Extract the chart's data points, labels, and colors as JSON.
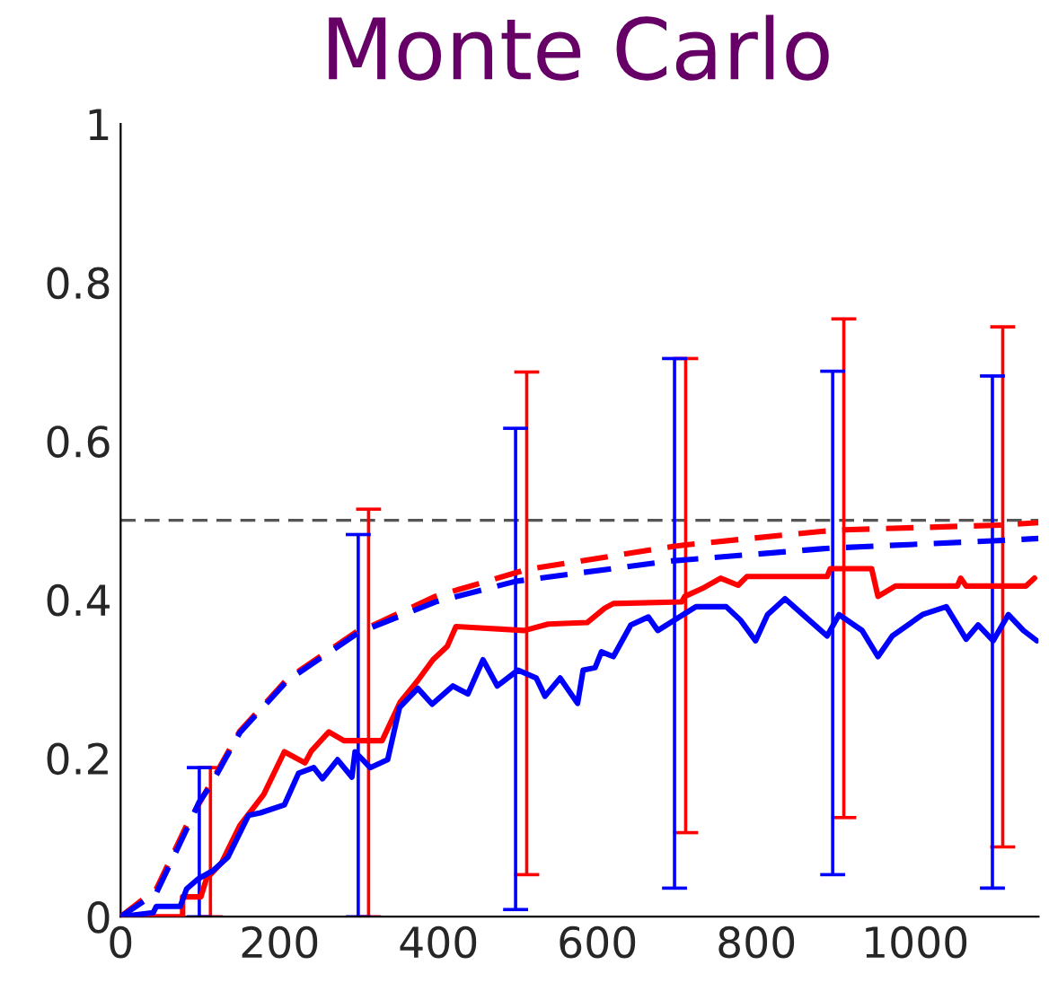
{
  "chart_data": {
    "type": "line",
    "title": "Monte Carlo",
    "xlim": [
      0,
      1155
    ],
    "ylim": [
      0,
      1
    ],
    "xticks": [
      0,
      200,
      400,
      600,
      800,
      1000
    ],
    "yticks": [
      0,
      0.2,
      0.4,
      0.6,
      0.8,
      1
    ],
    "grid": false,
    "legend": false,
    "marker": "none",
    "series": [
      {
        "color": "#ff0000",
        "line_style": "dashed",
        "x": [
          0,
          45,
          83,
          113,
          150,
          210,
          299,
          312,
          396,
          508,
          511,
          695,
          711,
          882,
          910,
          1110,
          1155
        ],
        "values": [
          0,
          0.035,
          0.115,
          0.168,
          0.234,
          0.3,
          0.361,
          0.365,
          0.404,
          0.437,
          0.438,
          0.467,
          0.469,
          0.486,
          0.488,
          0.494,
          0.497
        ],
        "errors": [
          null,
          null,
          null,
          [
            0,
            0.188
          ],
          null,
          null,
          null,
          [
            0,
            0.514
          ],
          null,
          null,
          [
            0.053,
            0.687
          ],
          null,
          [
            0.106,
            0.704
          ],
          null,
          [
            0.125,
            0.754
          ],
          [
            0.088,
            0.744
          ],
          null
        ]
      },
      {
        "color": "#0000ff",
        "line_style": "dashed",
        "x": [
          0,
          45,
          83,
          99,
          113,
          150,
          210,
          299,
          396,
          497,
          695,
          697,
          882,
          896,
          1097,
          1155
        ],
        "values": [
          0,
          0.03,
          0.11,
          0.145,
          0.165,
          0.232,
          0.298,
          0.358,
          0.397,
          0.423,
          0.449,
          0.449,
          0.464,
          0.465,
          0.474,
          0.477
        ],
        "errors": [
          null,
          null,
          null,
          [
            0,
            0.188
          ],
          null,
          null,
          null,
          [
            0,
            0.482
          ],
          null,
          [
            0.009,
            0.616
          ],
          null,
          [
            0.036,
            0.704
          ],
          null,
          [
            0.053,
            0.688
          ],
          [
            0.036,
            0.682
          ],
          null
        ]
      },
      {
        "color": "#ff0000",
        "line_style": "solid",
        "x": [
          0,
          78,
          78,
          101,
          108,
          127,
          150,
          180,
          206,
          232,
          240,
          262,
          281,
          329,
          352,
          374,
          393,
          411,
          422,
          508,
          538,
          587,
          609,
          620,
          706,
          710,
          732,
          755,
          777,
          788,
          889,
          893,
          945,
          953,
          975,
          1053,
          1057,
          1064,
          1139,
          1150
        ],
        "values": [
          0,
          0,
          0.025,
          0.025,
          0.048,
          0.068,
          0.115,
          0.154,
          0.208,
          0.194,
          0.209,
          0.233,
          0.222,
          0.222,
          0.271,
          0.298,
          0.324,
          0.341,
          0.366,
          0.361,
          0.369,
          0.371,
          0.389,
          0.395,
          0.397,
          0.404,
          0.414,
          0.427,
          0.418,
          0.429,
          0.429,
          0.439,
          0.439,
          0.404,
          0.417,
          0.417,
          0.427,
          0.417,
          0.417,
          0.427
        ]
      },
      {
        "color": "#0000ff",
        "line_style": "solid",
        "x": [
          0,
          41,
          45,
          75,
          83,
          98,
          116,
          135,
          161,
          176,
          206,
          224,
          243,
          254,
          273,
          291,
          295,
          314,
          336,
          351,
          374,
          392,
          418,
          437,
          456,
          474,
          500,
          523,
          534,
          553,
          575,
          582,
          597,
          605,
          620,
          642,
          664,
          676,
          724,
          762,
          780,
          799,
          814,
          836,
          862,
          889,
          904,
          933,
          953,
          971,
          1009,
          1039,
          1064,
          1079,
          1098,
          1117,
          1136,
          1153
        ],
        "values": [
          0,
          0.005,
          0.013,
          0.013,
          0.035,
          0.048,
          0.058,
          0.075,
          0.128,
          0.131,
          0.141,
          0.181,
          0.188,
          0.174,
          0.198,
          0.176,
          0.208,
          0.188,
          0.198,
          0.264,
          0.288,
          0.268,
          0.291,
          0.281,
          0.324,
          0.291,
          0.311,
          0.301,
          0.278,
          0.301,
          0.269,
          0.311,
          0.314,
          0.334,
          0.328,
          0.368,
          0.378,
          0.361,
          0.391,
          0.391,
          0.374,
          0.348,
          0.381,
          0.401,
          0.378,
          0.354,
          0.381,
          0.361,
          0.328,
          0.354,
          0.381,
          0.391,
          0.35,
          0.368,
          0.348,
          0.381,
          0.361,
          0.348
        ]
      }
    ],
    "ref_lines": [
      {
        "axis": "y",
        "value": 0.5,
        "color": "#555555",
        "line_style": "dashed"
      }
    ]
  }
}
